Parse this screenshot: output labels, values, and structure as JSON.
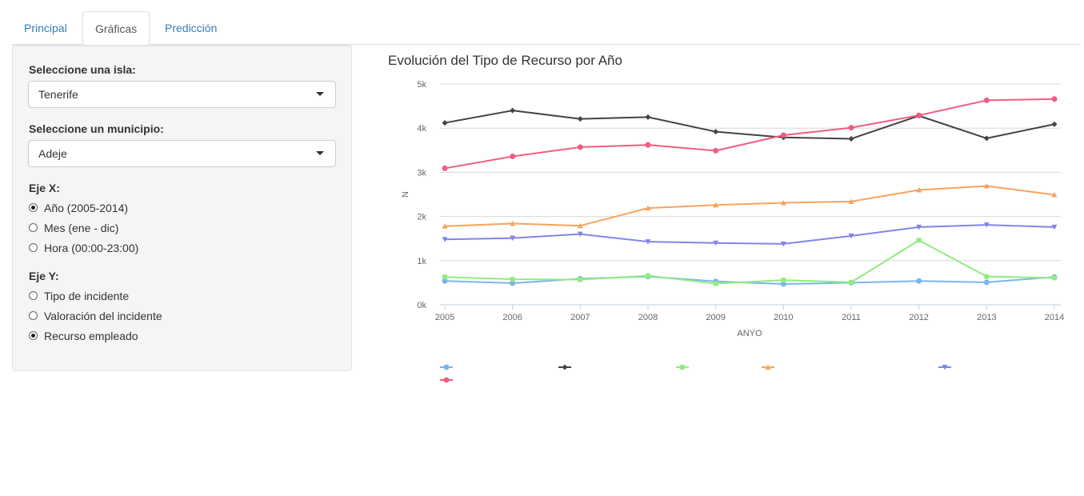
{
  "tabs": [
    {
      "label": "Principal",
      "active": false
    },
    {
      "label": "Gráficas",
      "active": true
    },
    {
      "label": "Predicción",
      "active": false
    }
  ],
  "sidebar": {
    "island_label": "Seleccione una isla:",
    "island_value": "Tenerife",
    "municipio_label": "Seleccione un municipio:",
    "municipio_value": "Adeje",
    "x_label": "Eje X:",
    "x_options": [
      {
        "label": "Año (2005-2014)",
        "selected": true
      },
      {
        "label": "Mes (ene - dic)",
        "selected": false
      },
      {
        "label": "Hora (00:00-23:00)",
        "selected": false
      }
    ],
    "y_label": "Eje Y:",
    "y_options": [
      {
        "label": "Tipo de incidente",
        "selected": false
      },
      {
        "label": "Valoración del incidente",
        "selected": false
      },
      {
        "label": "Recurso empleado",
        "selected": true
      }
    ]
  },
  "chart_data": {
    "type": "line",
    "title": "Evolución del Tipo de Recurso por Año",
    "xlabel": "ANYO",
    "ylabel": "N",
    "x": [
      2005,
      2006,
      2007,
      2008,
      2009,
      2010,
      2011,
      2012,
      2013,
      2014
    ],
    "ylim": [
      0,
      5000
    ],
    "yticks": [
      "0k",
      "1k",
      "2k",
      "3k",
      "4k",
      "5k"
    ],
    "grid": true,
    "legend_position": "bottom",
    "series": [
      {
        "color": "#7cb5ec",
        "marker": "circle",
        "values": [
          540,
          490,
          590,
          640,
          530,
          470,
          500,
          540,
          510,
          630
        ]
      },
      {
        "color": "#434348",
        "marker": "diamond",
        "values": [
          4120,
          4400,
          4210,
          4250,
          3920,
          3790,
          3760,
          4280,
          3770,
          4090
        ]
      },
      {
        "color": "#90ed7d",
        "marker": "square",
        "values": [
          630,
          580,
          570,
          660,
          480,
          560,
          510,
          1460,
          640,
          610
        ]
      },
      {
        "color": "#f7a35c",
        "marker": "triangle",
        "values": [
          1780,
          1840,
          1790,
          2190,
          2260,
          2310,
          2340,
          2600,
          2690,
          2490
        ]
      },
      {
        "color": "#8085e9",
        "marker": "triangle-down",
        "values": [
          1480,
          1510,
          1600,
          1430,
          1400,
          1380,
          1560,
          1760,
          1810,
          1760
        ]
      },
      {
        "color": "#f15c80",
        "marker": "circle",
        "values": [
          3090,
          3360,
          3570,
          3620,
          3490,
          3840,
          4010,
          4290,
          4630,
          4660
        ]
      }
    ]
  }
}
